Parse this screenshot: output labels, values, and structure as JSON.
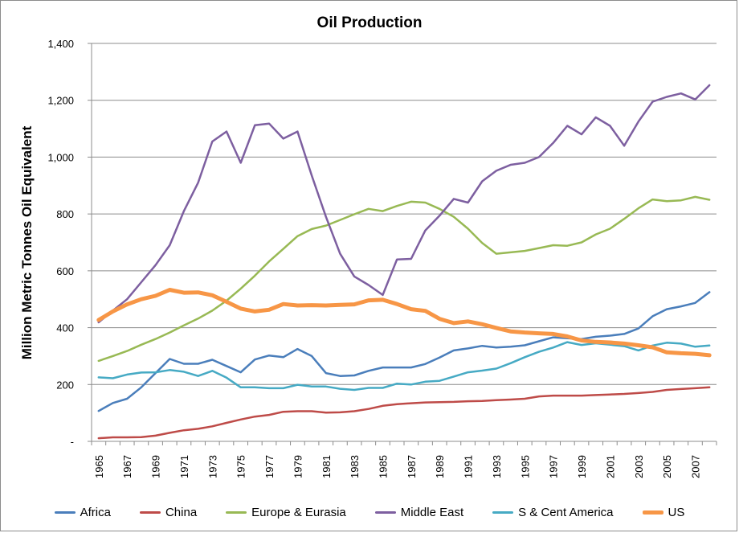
{
  "chart_data": {
    "type": "line",
    "title": "Oil Production",
    "ylabel": "Million Metric Tonnes Oil Equivalent",
    "xlabel": "",
    "ylim": [
      0,
      1400
    ],
    "yticks": [
      0,
      200,
      400,
      600,
      800,
      1000,
      1200,
      1400
    ],
    "ytick_labels": [
      "-",
      "200",
      "400",
      "600",
      "800",
      "1,000",
      "1,200",
      "1,400"
    ],
    "x": [
      1965,
      1966,
      1967,
      1968,
      1969,
      1970,
      1971,
      1972,
      1973,
      1974,
      1975,
      1976,
      1977,
      1978,
      1979,
      1980,
      1981,
      1982,
      1983,
      1984,
      1985,
      1986,
      1987,
      1988,
      1989,
      1990,
      1991,
      1992,
      1993,
      1994,
      1995,
      1996,
      1997,
      1998,
      1999,
      2000,
      2001,
      2002,
      2003,
      2004,
      2005,
      2006,
      2007,
      2008
    ],
    "xtick_labels": [
      "1965",
      "1967",
      "1969",
      "1971",
      "1973",
      "1975",
      "1977",
      "1979",
      "1981",
      "1983",
      "1985",
      "1987",
      "1989",
      "1991",
      "1993",
      "1995",
      "1997",
      "1999",
      "2001",
      "2003",
      "2005",
      "2007"
    ],
    "grid": true,
    "legend_position": "bottom",
    "series": [
      {
        "name": "Africa",
        "color": "#4a7ebb",
        "width": 2.5,
        "values": [
          107,
          135,
          150,
          190,
          240,
          290,
          273,
          273,
          287,
          265,
          243,
          288,
          302,
          296,
          325,
          300,
          240,
          230,
          232,
          248,
          260,
          260,
          260,
          272,
          295,
          320,
          327,
          336,
          330,
          333,
          338,
          352,
          366,
          363,
          360,
          368,
          372,
          378,
          397,
          440,
          465,
          475,
          487,
          525
        ]
      },
      {
        "name": "China",
        "color": "#be4b48",
        "width": 2.5,
        "values": [
          11,
          14,
          14,
          15,
          20,
          30,
          39,
          44,
          53,
          65,
          77,
          87,
          93,
          104,
          106,
          106,
          101,
          102,
          106,
          114,
          125,
          131,
          134,
          137,
          138,
          139,
          141,
          142,
          145,
          147,
          150,
          158,
          161,
          161,
          161,
          163,
          165,
          167,
          170,
          174,
          181,
          184,
          187,
          190
        ]
      },
      {
        "name": "Europe & Eurasia",
        "color": "#98b954",
        "width": 2.5,
        "values": [
          283,
          300,
          318,
          340,
          360,
          383,
          408,
          432,
          460,
          495,
          537,
          583,
          633,
          677,
          722,
          747,
          759,
          779,
          799,
          818,
          810,
          828,
          843,
          840,
          818,
          790,
          748,
          698,
          660,
          665,
          670,
          680,
          690,
          688,
          700,
          728,
          748,
          783,
          820,
          851,
          845,
          848,
          860,
          850
        ]
      },
      {
        "name": "Middle East",
        "color": "#7d5fa0",
        "width": 2.5,
        "values": [
          419,
          460,
          500,
          560,
          620,
          690,
          810,
          910,
          1055,
          1090,
          980,
          1112,
          1118,
          1065,
          1090,
          935,
          790,
          660,
          580,
          550,
          515,
          640,
          642,
          742,
          794,
          853,
          840,
          915,
          952,
          973,
          980,
          1000,
          1050,
          1110,
          1080,
          1140,
          1110,
          1040,
          1125,
          1195,
          1212,
          1224,
          1203,
          1253
        ]
      },
      {
        "name": "S & Cent America",
        "color": "#46aac4",
        "width": 2.5,
        "values": [
          225,
          222,
          235,
          242,
          243,
          251,
          245,
          230,
          248,
          224,
          190,
          190,
          187,
          187,
          199,
          193,
          193,
          185,
          181,
          188,
          188,
          203,
          200,
          210,
          213,
          228,
          243,
          249,
          256,
          275,
          296,
          315,
          330,
          349,
          339,
          345,
          340,
          335,
          320,
          337,
          347,
          344,
          333,
          337
        ]
      },
      {
        "name": "US",
        "color": "#f79646",
        "width": 5,
        "values": [
          427,
          457,
          482,
          500,
          512,
          533,
          523,
          524,
          514,
          491,
          467,
          457,
          463,
          483,
          478,
          479,
          478,
          480,
          482,
          496,
          498,
          483,
          465,
          459,
          431,
          416,
          422,
          412,
          399,
          387,
          383,
          380,
          378,
          369,
          355,
          350,
          348,
          344,
          338,
          331,
          313,
          310,
          308,
          303
        ]
      }
    ]
  }
}
